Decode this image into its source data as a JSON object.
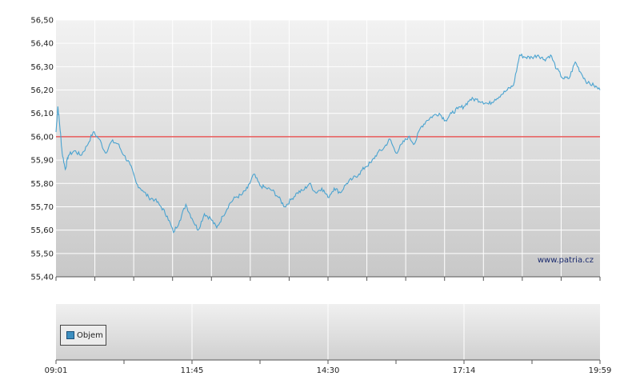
{
  "chart_data": [
    {
      "type": "line",
      "title": "",
      "xlabel": "",
      "ylabel": "",
      "ylim": [
        55.4,
        56.5
      ],
      "y_ticks": [
        "55,40",
        "55,50",
        "55,60",
        "55,70",
        "55,80",
        "55,90",
        "56,00",
        "56,10",
        "56,20",
        "56,30",
        "56,40",
        "56,50"
      ],
      "x_ticks": [
        "09:01",
        "11:45",
        "14:30",
        "17:14",
        "19:59"
      ],
      "reference_line": {
        "value": 56.0,
        "color": "#e85a5a"
      },
      "line_color": "#4aa3d0",
      "grid": true,
      "watermark": "www.patria.cz",
      "series": [
        {
          "points": [
            [
              0,
              56.02
            ],
            [
              0.3,
              56.13
            ],
            [
              0.6,
              56.05
            ],
            [
              1,
              55.93
            ],
            [
              1.5,
              55.86
            ],
            [
              2,
              55.92
            ],
            [
              3,
              55.94
            ],
            [
              4,
              55.92
            ],
            [
              5,
              55.96
            ],
            [
              6,
              56.02
            ],
            [
              7,
              55.99
            ],
            [
              8,
              55.93
            ],
            [
              9,
              55.98
            ],
            [
              10,
              55.97
            ],
            [
              11,
              55.92
            ],
            [
              12,
              55.88
            ],
            [
              13,
              55.8
            ],
            [
              14,
              55.77
            ],
            [
              15,
              55.74
            ],
            [
              16,
              55.73
            ],
            [
              17,
              55.7
            ],
            [
              18,
              55.66
            ],
            [
              19,
              55.59
            ],
            [
              20,
              55.64
            ],
            [
              21,
              55.71
            ],
            [
              22,
              55.65
            ],
            [
              23,
              55.6
            ],
            [
              24,
              55.67
            ],
            [
              25,
              55.65
            ],
            [
              26,
              55.61
            ],
            [
              27,
              55.66
            ],
            [
              28,
              55.71
            ],
            [
              29,
              55.74
            ],
            [
              30,
              55.75
            ],
            [
              31,
              55.78
            ],
            [
              32,
              55.84
            ],
            [
              33,
              55.79
            ],
            [
              34,
              55.78
            ],
            [
              35,
              55.77
            ],
            [
              36,
              55.74
            ],
            [
              37,
              55.7
            ],
            [
              38,
              55.73
            ],
            [
              39,
              55.76
            ],
            [
              40,
              55.77
            ],
            [
              41,
              55.8
            ],
            [
              42,
              55.76
            ],
            [
              43,
              55.78
            ],
            [
              44,
              55.74
            ],
            [
              45,
              55.78
            ],
            [
              46,
              55.76
            ],
            [
              47,
              55.8
            ],
            [
              48,
              55.82
            ],
            [
              49,
              55.84
            ],
            [
              50,
              55.87
            ],
            [
              51,
              55.89
            ],
            [
              52,
              55.93
            ],
            [
              53,
              55.95
            ],
            [
              54,
              55.99
            ],
            [
              55,
              55.93
            ],
            [
              56,
              55.97
            ],
            [
              57,
              56.0
            ],
            [
              58,
              55.97
            ],
            [
              59,
              56.04
            ],
            [
              60,
              56.07
            ],
            [
              61,
              56.09
            ],
            [
              62,
              56.1
            ],
            [
              63,
              56.07
            ],
            [
              64,
              56.1
            ],
            [
              65,
              56.12
            ],
            [
              66,
              56.13
            ],
            [
              67,
              56.16
            ],
            [
              68,
              56.16
            ],
            [
              69,
              56.15
            ],
            [
              70,
              56.14
            ],
            [
              71,
              56.16
            ],
            [
              72,
              56.18
            ],
            [
              73,
              56.2
            ],
            [
              74,
              56.22
            ],
            [
              75,
              56.35
            ],
            [
              76,
              56.34
            ],
            [
              77,
              56.34
            ],
            [
              78,
              56.35
            ],
            [
              79,
              56.33
            ],
            [
              80,
              56.35
            ],
            [
              81,
              56.29
            ],
            [
              82,
              56.25
            ],
            [
              83,
              56.25
            ],
            [
              84,
              56.32
            ],
            [
              85,
              56.27
            ],
            [
              86,
              56.23
            ],
            [
              87,
              56.22
            ],
            [
              88,
              56.2
            ]
          ],
          "x_range": [
            0,
            88
          ]
        }
      ]
    },
    {
      "type": "bar",
      "title": "",
      "legend": [
        {
          "label": "Objem",
          "color": "#3d8fc0"
        }
      ],
      "series": []
    }
  ]
}
